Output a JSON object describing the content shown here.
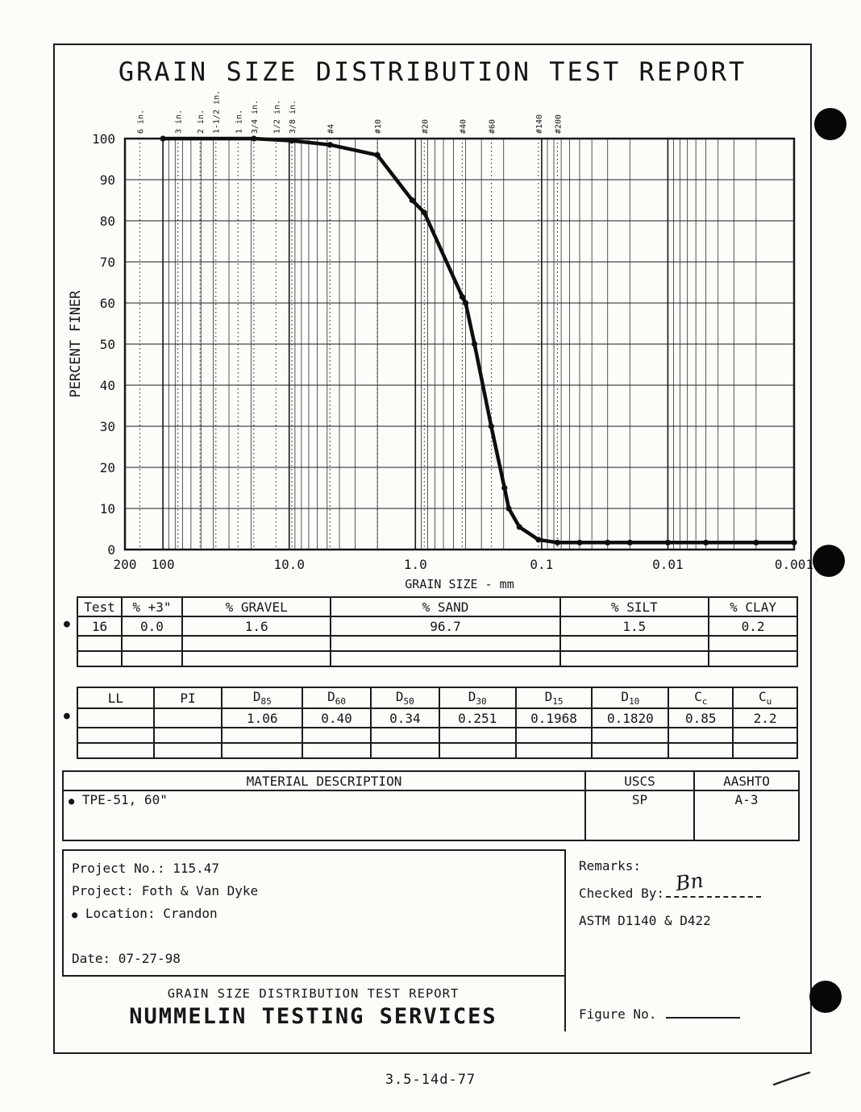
{
  "glyphs": {
    "bullet": "●"
  },
  "page": {
    "title": "GRAIN SIZE DISTRIBUTION TEST REPORT",
    "footer_code": "3.5-14d-77"
  },
  "chart_data": {
    "type": "line",
    "title": "Grain size distribution curve",
    "xlabel": "GRAIN SIZE - mm",
    "ylabel": "PERCENT FINER",
    "x_scale": "log",
    "x_range": [
      200,
      0.001
    ],
    "y_range": [
      0,
      100
    ],
    "x_ticks": [
      {
        "label": "200",
        "value": 200
      },
      {
        "label": "100",
        "value": 100
      },
      {
        "label": "10.0",
        "value": 10
      },
      {
        "label": "1.0",
        "value": 1
      },
      {
        "label": "0.1",
        "value": 0.1
      },
      {
        "label": "0.01",
        "value": 0.01
      },
      {
        "label": "0.001",
        "value": 0.001
      }
    ],
    "y_ticks": [
      0,
      10,
      20,
      30,
      40,
      50,
      60,
      70,
      80,
      90,
      100
    ],
    "sieve_lines": [
      {
        "label": "6 in.",
        "mm": 152.4
      },
      {
        "label": "3 in.",
        "mm": 76.2
      },
      {
        "label": "2 in.",
        "mm": 50.8
      },
      {
        "label": "1-1/2 in.",
        "mm": 38.1
      },
      {
        "label": "1 in.",
        "mm": 25.4
      },
      {
        "label": "3/4 in.",
        "mm": 19.05
      },
      {
        "label": "1/2 in.",
        "mm": 12.7
      },
      {
        "label": "3/8 in.",
        "mm": 9.525
      },
      {
        "label": "#4",
        "mm": 4.75
      },
      {
        "label": "#10",
        "mm": 2.0
      },
      {
        "label": "#20",
        "mm": 0.85
      },
      {
        "label": "#40",
        "mm": 0.425
      },
      {
        "label": "#60",
        "mm": 0.25
      },
      {
        "label": "#140",
        "mm": 0.106
      },
      {
        "label": "#200",
        "mm": 0.075
      }
    ],
    "series": [
      {
        "name": "Test 16",
        "points": [
          {
            "mm": 100,
            "pf": 100
          },
          {
            "mm": 19.05,
            "pf": 100
          },
          {
            "mm": 9.525,
            "pf": 99.5
          },
          {
            "mm": 4.75,
            "pf": 98.5
          },
          {
            "mm": 2.0,
            "pf": 96.0
          },
          {
            "mm": 1.06,
            "pf": 85.0
          },
          {
            "mm": 0.85,
            "pf": 82.0
          },
          {
            "mm": 0.425,
            "pf": 61.5
          },
          {
            "mm": 0.4,
            "pf": 60.0
          },
          {
            "mm": 0.34,
            "pf": 50.0
          },
          {
            "mm": 0.251,
            "pf": 30.0
          },
          {
            "mm": 0.1968,
            "pf": 15.0
          },
          {
            "mm": 0.182,
            "pf": 10.0
          },
          {
            "mm": 0.15,
            "pf": 5.5
          },
          {
            "mm": 0.106,
            "pf": 2.4
          },
          {
            "mm": 0.075,
            "pf": 1.7
          },
          {
            "mm": 0.05,
            "pf": 1.7
          },
          {
            "mm": 0.03,
            "pf": 1.7
          },
          {
            "mm": 0.02,
            "pf": 1.7
          },
          {
            "mm": 0.01,
            "pf": 1.7
          },
          {
            "mm": 0.005,
            "pf": 1.7
          },
          {
            "mm": 0.002,
            "pf": 1.7
          },
          {
            "mm": 0.001,
            "pf": 1.7
          }
        ]
      }
    ]
  },
  "summary_table": {
    "headers": [
      "Test",
      "% +3\"",
      "% GRAVEL",
      "% SAND",
      "% SILT",
      "% CLAY"
    ],
    "rows": [
      {
        "bullet": true,
        "cells": [
          "16",
          "0.0",
          "1.6",
          "96.7",
          "1.5",
          "0.2"
        ]
      },
      {
        "bullet": false,
        "cells": [
          "",
          "",
          "",
          "",
          "",
          ""
        ]
      },
      {
        "bullet": false,
        "cells": [
          "",
          "",
          "",
          "",
          "",
          ""
        ]
      }
    ]
  },
  "coefficients_table": {
    "headers": [
      {
        "t": "LL",
        "s": ""
      },
      {
        "t": "PI",
        "s": ""
      },
      {
        "t": "D",
        "s": "85"
      },
      {
        "t": "D",
        "s": "60"
      },
      {
        "t": "D",
        "s": "50"
      },
      {
        "t": "D",
        "s": "30"
      },
      {
        "t": "D",
        "s": "15"
      },
      {
        "t": "D",
        "s": "10"
      },
      {
        "t": "C",
        "s": "c"
      },
      {
        "t": "C",
        "s": "u"
      }
    ],
    "rows": [
      {
        "bullet": true,
        "cells": [
          "",
          "",
          "1.06",
          "0.40",
          "0.34",
          "0.251",
          "0.1968",
          "0.1820",
          "0.85",
          "2.2"
        ]
      },
      {
        "bullet": false,
        "cells": [
          "",
          "",
          "",
          "",
          "",
          "",
          "",
          "",
          "",
          ""
        ]
      },
      {
        "bullet": false,
        "cells": [
          "",
          "",
          "",
          "",
          "",
          "",
          "",
          "",
          "",
          ""
        ]
      }
    ]
  },
  "material_table": {
    "headers": {
      "description": "MATERIAL DESCRIPTION",
      "uscs": "USCS",
      "aashto": "AASHTO"
    },
    "rows": [
      {
        "bullet": true,
        "description": "TPE-51, 60\"",
        "uscs": "SP",
        "aashto": "A-3"
      }
    ]
  },
  "footer": {
    "project_lines": [
      {
        "bullet": false,
        "text": "Project No.: 115.47"
      },
      {
        "bullet": false,
        "text": "Project: Foth & Van Dyke"
      },
      {
        "bullet": true,
        "text": "Location: Crandon"
      },
      {
        "bullet": false,
        "text": "Date: 07-27-98",
        "pin_bottom": true
      }
    ],
    "report_title": "GRAIN SIZE DISTRIBUTION TEST REPORT",
    "lab_name": "NUMMELIN TESTING SERVICES",
    "remarks_label": "Remarks:",
    "checked_by_label": "Checked By:",
    "checked_by_signature": "Bn",
    "astm_text": "ASTM D1140 & D422",
    "figure_label": "Figure No."
  }
}
